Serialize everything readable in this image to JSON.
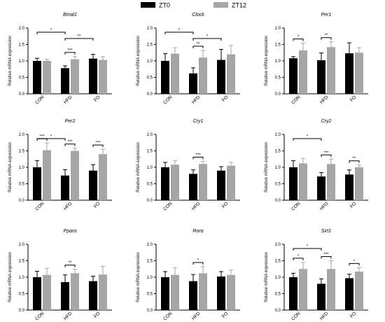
{
  "legend": [
    {
      "name": "ZT0",
      "color": "#000000"
    },
    {
      "name": "ZT12",
      "color": "#a6a6a6"
    }
  ],
  "chart_data": [
    {
      "type": "bar",
      "title": "Bmal1",
      "ylabel": "Relative mRNA expression",
      "ylim": [
        0,
        2.0
      ],
      "yticks": [
        "0.0",
        "0.5",
        "1.0",
        "1.5",
        "2.0"
      ],
      "categories": [
        "CON",
        "HFD",
        "FO"
      ],
      "series": [
        {
          "name": "ZT0",
          "values": [
            1.0,
            0.78,
            1.07
          ],
          "errors": [
            0.08,
            0.07,
            0.13
          ]
        },
        {
          "name": "ZT12",
          "values": [
            1.0,
            1.05,
            1.03
          ],
          "errors": [
            0.05,
            0.08,
            0.1
          ]
        }
      ],
      "significance": [
        {
          "from": [
            0,
            0
          ],
          "to": [
            1,
            0
          ],
          "label": "*"
        },
        {
          "from": [
            1,
            0
          ],
          "to": [
            2,
            0
          ],
          "label": "**"
        },
        {
          "from": [
            1,
            0
          ],
          "to": [
            1,
            1
          ],
          "label": "***"
        }
      ]
    },
    {
      "type": "bar",
      "title": "Clock",
      "ylabel": "Relative mRNA expression",
      "ylim": [
        0,
        2.0
      ],
      "yticks": [
        "0.0",
        "0.5",
        "1.0",
        "1.5",
        "2.0"
      ],
      "categories": [
        "CON",
        "HFD",
        "FO"
      ],
      "series": [
        {
          "name": "ZT0",
          "values": [
            1.0,
            0.62,
            1.03
          ],
          "errors": [
            0.22,
            0.17,
            0.32
          ]
        },
        {
          "name": "ZT12",
          "values": [
            1.22,
            1.1,
            1.2
          ],
          "errors": [
            0.18,
            0.22,
            0.27
          ]
        }
      ],
      "significance": [
        {
          "from": [
            0,
            0
          ],
          "to": [
            1,
            0
          ],
          "label": "*"
        },
        {
          "from": [
            1,
            0
          ],
          "to": [
            2,
            0
          ],
          "label": "*"
        },
        {
          "from": [
            1,
            0
          ],
          "to": [
            1,
            1
          ],
          "label": "**"
        }
      ]
    },
    {
      "type": "bar",
      "title": "Per1",
      "ylabel": "Relative mRNA expression",
      "ylim": [
        0,
        2.0
      ],
      "yticks": [
        "0.0",
        "0.5",
        "1.0",
        "1.5",
        "2.0"
      ],
      "categories": [
        "CON",
        "HFD",
        "FO"
      ],
      "series": [
        {
          "name": "ZT0",
          "values": [
            1.08,
            1.02,
            1.23
          ],
          "errors": [
            0.05,
            0.22,
            0.32
          ]
        },
        {
          "name": "ZT12",
          "values": [
            1.32,
            1.42,
            1.25
          ],
          "errors": [
            0.22,
            0.16,
            0.15
          ]
        }
      ],
      "significance": [
        {
          "from": [
            0,
            0
          ],
          "to": [
            0,
            1
          ],
          "label": "*"
        },
        {
          "from": [
            1,
            0
          ],
          "to": [
            1,
            1
          ],
          "label": "**"
        }
      ]
    },
    {
      "type": "bar",
      "title": "Per2",
      "ylabel": "Relative mRNA expression",
      "ylim": [
        0,
        2.0
      ],
      "yticks": [
        "0.0",
        "0.5",
        "1.0",
        "1.5",
        "2.0"
      ],
      "categories": [
        "CON",
        "HFD",
        "FO"
      ],
      "series": [
        {
          "name": "ZT0",
          "values": [
            1.0,
            0.75,
            0.9
          ],
          "errors": [
            0.2,
            0.18,
            0.18
          ]
        },
        {
          "name": "ZT12",
          "values": [
            1.52,
            1.5,
            1.4
          ],
          "errors": [
            0.22,
            0.08,
            0.15
          ]
        }
      ],
      "significance": [
        {
          "from": [
            0,
            0
          ],
          "to": [
            1,
            0
          ],
          "label": "*"
        },
        {
          "from": [
            0,
            0
          ],
          "to": [
            0,
            1
          ],
          "label": "***"
        },
        {
          "from": [
            1,
            0
          ],
          "to": [
            1,
            1
          ],
          "label": "***"
        },
        {
          "from": [
            2,
            0
          ],
          "to": [
            2,
            1
          ],
          "label": "***"
        }
      ]
    },
    {
      "type": "bar",
      "title": "Cry1",
      "ylabel": "Relative mRNA expression",
      "ylim": [
        0,
        2.0
      ],
      "yticks": [
        "0.0",
        "0.5",
        "1.0",
        "1.5",
        "2.0"
      ],
      "categories": [
        "CON",
        "HFD",
        "FO"
      ],
      "series": [
        {
          "name": "ZT0",
          "values": [
            1.0,
            0.8,
            0.9
          ],
          "errors": [
            0.15,
            0.12,
            0.12
          ]
        },
        {
          "name": "ZT12",
          "values": [
            1.08,
            1.1,
            1.05
          ],
          "errors": [
            0.12,
            0.08,
            0.1
          ]
        }
      ],
      "significance": [
        {
          "from": [
            1,
            0
          ],
          "to": [
            1,
            1
          ],
          "label": "***"
        }
      ]
    },
    {
      "type": "bar",
      "title": "Cry2",
      "ylabel": "Relative mRNA expression",
      "ylim": [
        0,
        2.0
      ],
      "yticks": [
        "0.0",
        "0.5",
        "1.0",
        "1.5",
        "2.0"
      ],
      "categories": [
        "CON",
        "HFD",
        "FO"
      ],
      "series": [
        {
          "name": "ZT0",
          "values": [
            1.0,
            0.72,
            0.78
          ],
          "errors": [
            0.2,
            0.12,
            0.14
          ]
        },
        {
          "name": "ZT12",
          "values": [
            1.12,
            1.1,
            1.0
          ],
          "errors": [
            0.15,
            0.15,
            0.07
          ]
        }
      ],
      "significance": [
        {
          "from": [
            0,
            0
          ],
          "to": [
            1,
            0
          ],
          "label": "*"
        },
        {
          "from": [
            1,
            0
          ],
          "to": [
            1,
            1
          ],
          "label": "***"
        },
        {
          "from": [
            2,
            0
          ],
          "to": [
            2,
            1
          ],
          "label": "**"
        }
      ]
    },
    {
      "type": "bar",
      "title": "Pparα",
      "ylabel": "Relative mRNA expression",
      "ylim": [
        0,
        2.0
      ],
      "yticks": [
        "0.0",
        "0.5",
        "1.0",
        "1.5",
        "2.0"
      ],
      "categories": [
        "CON",
        "HFD",
        "FO"
      ],
      "series": [
        {
          "name": "ZT0",
          "values": [
            1.0,
            0.85,
            0.88
          ],
          "errors": [
            0.18,
            0.22,
            0.15
          ]
        },
        {
          "name": "ZT12",
          "values": [
            1.07,
            1.12,
            1.08
          ],
          "errors": [
            0.2,
            0.12,
            0.25
          ]
        }
      ],
      "significance": [
        {
          "from": [
            1,
            0
          ],
          "to": [
            1,
            1
          ],
          "label": "**"
        }
      ]
    },
    {
      "type": "bar",
      "title": "Rorα",
      "ylabel": "Relative mRNA expression",
      "ylim": [
        0,
        2.0
      ],
      "yticks": [
        "0.0",
        "0.5",
        "1.0",
        "1.5",
        "2.0"
      ],
      "categories": [
        "CON",
        "HFD",
        "FO"
      ],
      "series": [
        {
          "name": "ZT0",
          "values": [
            1.0,
            0.88,
            1.02
          ],
          "errors": [
            0.17,
            0.2,
            0.15
          ]
        },
        {
          "name": "ZT12",
          "values": [
            1.07,
            1.12,
            1.07
          ],
          "errors": [
            0.22,
            0.2,
            0.15
          ]
        }
      ],
      "significance": [
        {
          "from": [
            1,
            0
          ],
          "to": [
            1,
            1
          ],
          "label": "*"
        }
      ]
    },
    {
      "type": "bar",
      "title": "Sirt1",
      "ylabel": "Relative mRNA expression",
      "ylim": [
        0,
        2.0
      ],
      "yticks": [
        "0.0",
        "0.5",
        "1.0",
        "1.5",
        "2.0"
      ],
      "categories": [
        "CON",
        "HFD",
        "FO"
      ],
      "series": [
        {
          "name": "ZT0",
          "values": [
            1.0,
            0.8,
            0.97
          ],
          "errors": [
            0.12,
            0.15,
            0.12
          ]
        },
        {
          "name": "ZT12",
          "values": [
            1.25,
            1.25,
            1.17
          ],
          "errors": [
            0.2,
            0.25,
            0.12
          ]
        }
      ],
      "significance": [
        {
          "from": [
            0,
            0
          ],
          "to": [
            1,
            0
          ],
          "label": "*"
        },
        {
          "from": [
            0,
            0
          ],
          "to": [
            0,
            1
          ],
          "label": "*"
        },
        {
          "from": [
            1,
            0
          ],
          "to": [
            1,
            1
          ],
          "label": "***"
        },
        {
          "from": [
            2,
            0
          ],
          "to": [
            2,
            1
          ],
          "label": "*"
        }
      ]
    }
  ]
}
